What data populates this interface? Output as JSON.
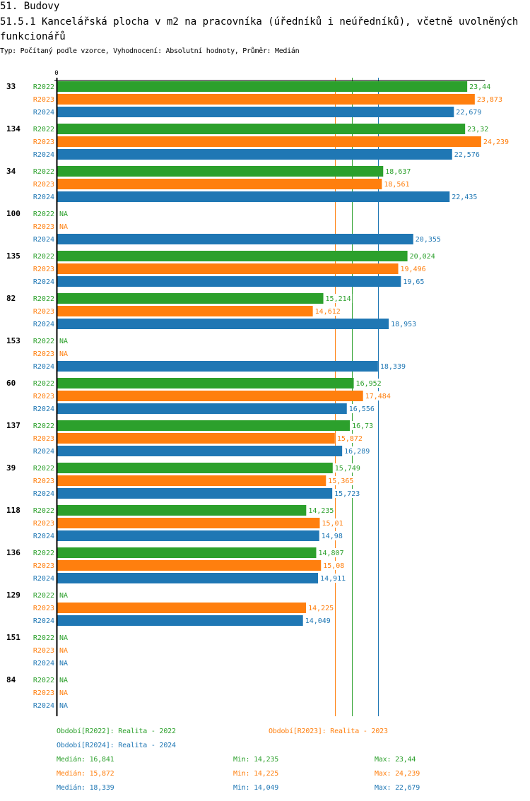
{
  "header": {
    "section": "51. Budovy",
    "title": "51.5.1 Kancelářská plocha v m2 na pracovníka (úředníků i neúředníků), včetně uvolněných funkcionářů",
    "subtitle": "Typ: Počítaný podle vzorce, Vyhodnocení: Absolutní hodnoty, Průměr: Medián"
  },
  "colors": {
    "R2022": "#2ca02c",
    "R2023": "#ff7f0e",
    "R2024": "#1f77b4",
    "axis": "#000000"
  },
  "chart_data": {
    "type": "bar",
    "orientation": "horizontal",
    "title": "51.5.1 Kancelářská plocha v m2 na pracovníka (úředníků i neúředníků), včetně uvolněných funkcionářů",
    "xlabel": "",
    "ylabel": "",
    "x_tick_labels": [
      "0"
    ],
    "xlim": [
      0,
      24.239
    ],
    "grid": false,
    "legend_position": "bottom",
    "categories": [
      "33",
      "134",
      "34",
      "100",
      "135",
      "82",
      "153",
      "60",
      "137",
      "39",
      "118",
      "136",
      "129",
      "151",
      "84"
    ],
    "series": [
      {
        "name": "R2022",
        "label": "Období[R2022]: Realita - 2022",
        "color": "#2ca02c",
        "values": [
          23.44,
          23.32,
          18.637,
          null,
          20.024,
          15.214,
          null,
          16.952,
          16.73,
          15.749,
          14.235,
          14.807,
          null,
          null,
          null
        ],
        "labels": [
          "23,44",
          "23,32",
          "18,637",
          "NA",
          "20,024",
          "15,214",
          "NA",
          "16,952",
          "16,73",
          "15,749",
          "14,235",
          "14,807",
          "NA",
          "NA",
          "NA"
        ]
      },
      {
        "name": "R2023",
        "label": "Období[R2023]: Realita - 2023",
        "color": "#ff7f0e",
        "values": [
          23.873,
          24.239,
          18.561,
          null,
          19.496,
          14.612,
          null,
          17.484,
          15.872,
          15.365,
          15.01,
          15.08,
          14.225,
          null,
          null
        ],
        "labels": [
          "23,873",
          "24,239",
          "18,561",
          "NA",
          "19,496",
          "14,612",
          "NA",
          "17,484",
          "15,872",
          "15,365",
          "15,01",
          "15,08",
          "14,225",
          "NA",
          "NA"
        ]
      },
      {
        "name": "R2024",
        "label": "Období[R2024]: Realita - 2024",
        "color": "#1f77b4",
        "values": [
          22.679,
          22.576,
          22.435,
          20.355,
          19.65,
          18.953,
          18.339,
          16.556,
          16.289,
          15.723,
          14.98,
          14.911,
          14.049,
          null,
          null
        ],
        "labels": [
          "22,679",
          "22,576",
          "22,435",
          "20,355",
          "19,65",
          "18,953",
          "18,339",
          "16,556",
          "16,289",
          "15,723",
          "14,98",
          "14,911",
          "14,049",
          "NA",
          "NA"
        ]
      }
    ],
    "medians": [
      16.841,
      15.872,
      18.339
    ],
    "stats": [
      {
        "series": "R2022",
        "median": "Medián: 16,841",
        "min": "Min: 14,235",
        "max": "Max: 23,44"
      },
      {
        "series": "R2023",
        "median": "Medián: 15,872",
        "min": "Min: 14,225",
        "max": "Max: 24,239"
      },
      {
        "series": "R2024",
        "median": "Medián: 18,339",
        "min": "Min: 14,049",
        "max": "Max: 22,679"
      }
    ]
  }
}
